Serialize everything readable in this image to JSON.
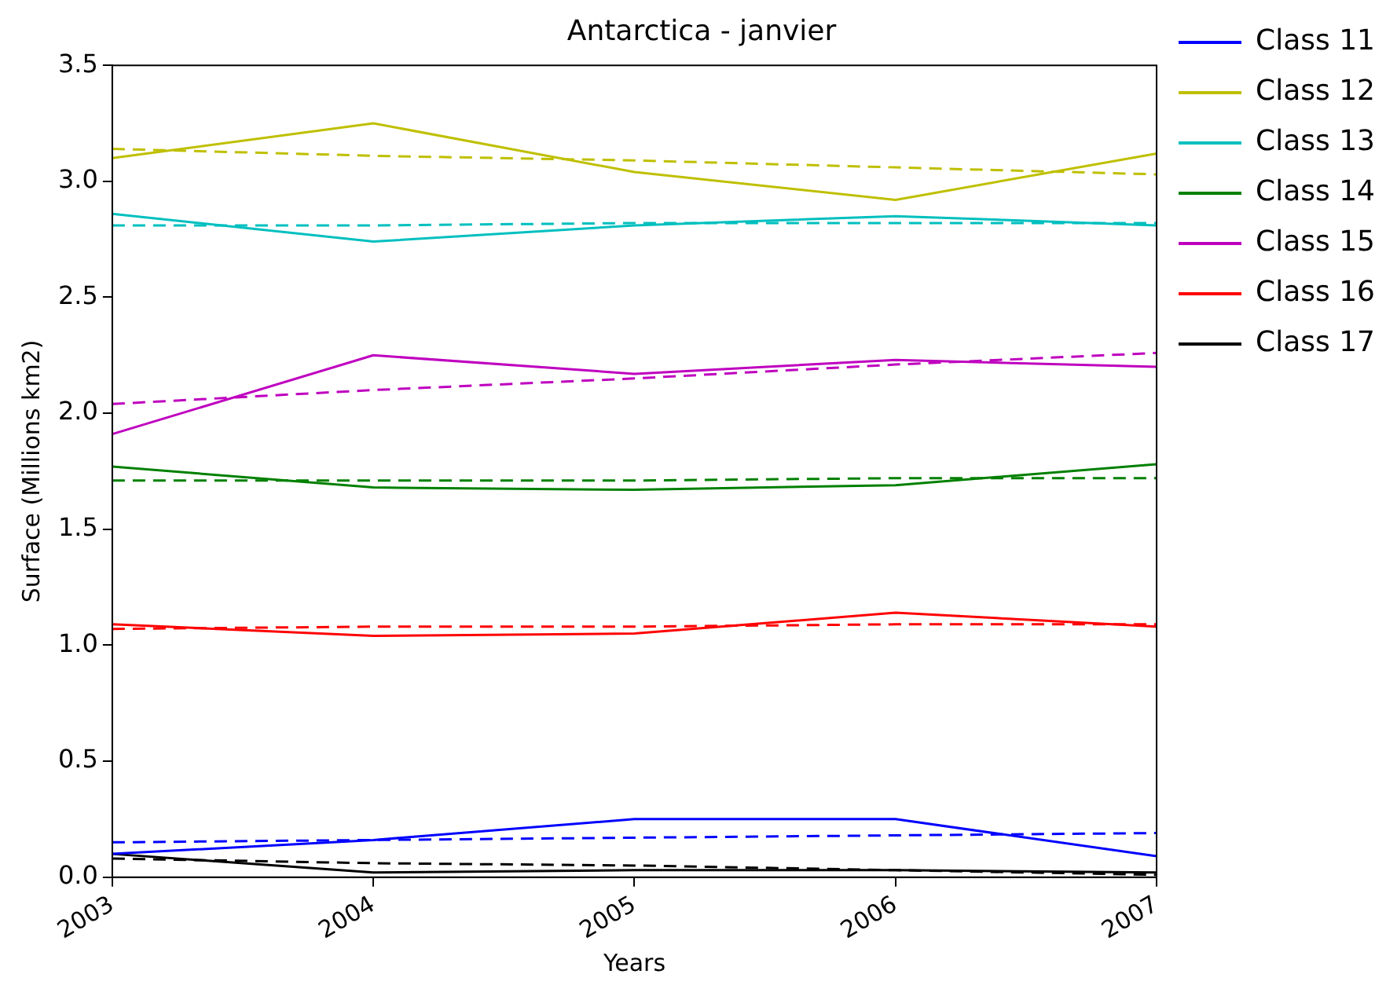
{
  "chart_data": {
    "type": "line",
    "title": "Antarctica - janvier",
    "xlabel": "Years",
    "ylabel": "Surface (Millions km2)",
    "x": [
      2003,
      2004,
      2005,
      2006,
      2007
    ],
    "xlim": [
      2003,
      2007
    ],
    "xticks": [
      2003,
      2004,
      2005,
      2006,
      2007
    ],
    "ylim": [
      0,
      3.5
    ],
    "yticks": [
      {
        "value": 0,
        "label": "0.0"
      },
      {
        "value": 0.5,
        "label": "0.5"
      },
      {
        "value": 1,
        "label": "1.0"
      },
      {
        "value": 1.5,
        "label": "1.5"
      },
      {
        "value": 2,
        "label": "2.0"
      },
      {
        "value": 2.5,
        "label": "2.5"
      },
      {
        "value": 3,
        "label": "3.0"
      },
      {
        "value": 3.5,
        "label": "3.5"
      }
    ],
    "grid": false,
    "legend": "top right",
    "marker": "none",
    "series": [
      {
        "name": "Class 11",
        "color": "#0000ff",
        "values": [
          0.1,
          0.16,
          0.25,
          0.25,
          0.09
        ]
      },
      {
        "name": "Class 12",
        "color": "#bfbf00",
        "values": [
          3.1,
          3.25,
          3.04,
          2.92,
          3.12
        ]
      },
      {
        "name": "Class 13",
        "color": "#00bfbf",
        "values": [
          2.86,
          2.74,
          2.81,
          2.85,
          2.81
        ]
      },
      {
        "name": "Class 14",
        "color": "#008000",
        "values": [
          1.77,
          1.68,
          1.67,
          1.69,
          1.78
        ]
      },
      {
        "name": "Class 15",
        "color": "#bf00bf",
        "values": [
          1.91,
          2.25,
          2.17,
          2.23,
          2.2
        ]
      },
      {
        "name": "Class 16",
        "color": "#ff0000",
        "values": [
          1.09,
          1.04,
          1.05,
          1.14,
          1.08
        ]
      },
      {
        "name": "Class 17",
        "color": "#000000",
        "values": [
          0.1,
          0.02,
          0.03,
          0.03,
          0.02
        ]
      },
      {
        "color": "#0000ff",
        "line_style": "dashed",
        "values": [
          0.15,
          0.16,
          0.17,
          0.18,
          0.19
        ]
      },
      {
        "color": "#bfbf00",
        "line_style": "dashed",
        "values": [
          3.14,
          3.11,
          3.09,
          3.06,
          3.03
        ]
      },
      {
        "color": "#00bfbf",
        "line_style": "dashed",
        "values": [
          2.81,
          2.81,
          2.82,
          2.82,
          2.82
        ]
      },
      {
        "color": "#008000",
        "line_style": "dashed",
        "values": [
          1.71,
          1.71,
          1.71,
          1.72,
          1.72
        ]
      },
      {
        "color": "#bf00bf",
        "line_style": "dashed",
        "values": [
          2.04,
          2.1,
          2.15,
          2.21,
          2.26
        ]
      },
      {
        "color": "#ff0000",
        "line_style": "dashed",
        "values": [
          1.07,
          1.08,
          1.08,
          1.09,
          1.09
        ]
      },
      {
        "color": "#000000",
        "line_style": "dashed",
        "values": [
          0.08,
          0.06,
          0.05,
          0.03,
          0.01
        ]
      }
    ]
  }
}
